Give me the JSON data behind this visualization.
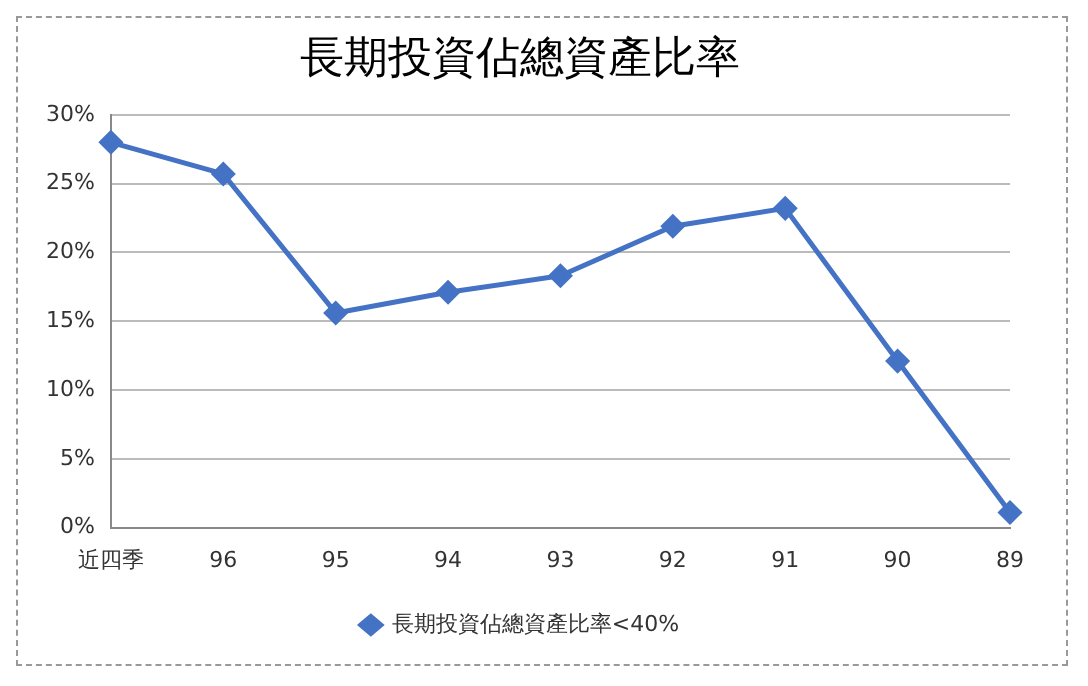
{
  "chart_data": {
    "type": "line",
    "title": "長期投資佔總資產比率",
    "categories": [
      "近四季",
      "96",
      "95",
      "94",
      "93",
      "92",
      "91",
      "90",
      "89"
    ],
    "series": [
      {
        "name": "長期投資佔總資產比率<40%",
        "color": "#4472c4",
        "values": [
          28.0,
          25.7,
          15.6,
          17.1,
          18.3,
          21.9,
          23.2,
          12.1,
          1.1
        ]
      }
    ],
    "ylim": [
      0,
      30
    ],
    "yticks": [
      {
        "value": 0,
        "label": "0%"
      },
      {
        "value": 5,
        "label": "5%"
      },
      {
        "value": 10,
        "label": "10%"
      },
      {
        "value": 15,
        "label": "15%"
      },
      {
        "value": 20,
        "label": "20%"
      },
      {
        "value": 25,
        "label": "25%"
      },
      {
        "value": 30,
        "label": "30%"
      }
    ],
    "grid": "y",
    "legend": "bottom",
    "marker": "diamond",
    "line_style": "solid"
  }
}
